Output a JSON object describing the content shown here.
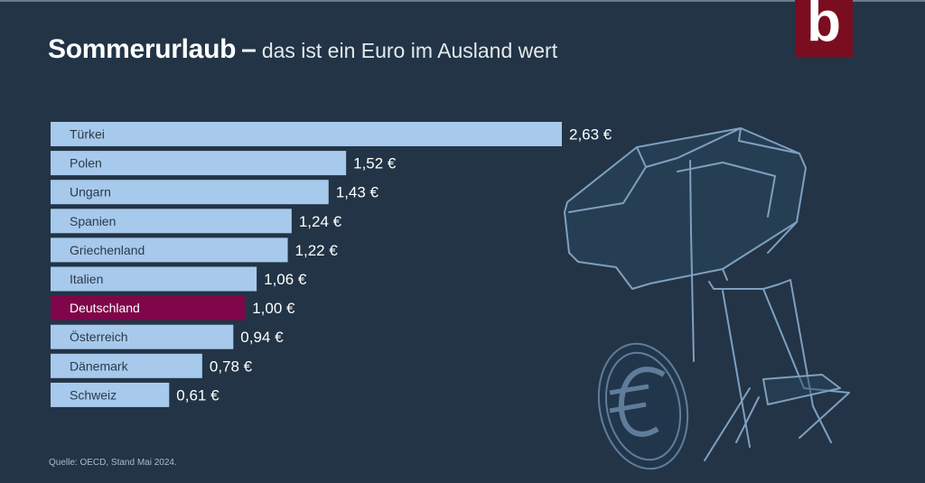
{
  "header": {
    "title_main": "Sommerurlaub",
    "title_dash": "–",
    "title_sub": "das ist ein Euro im Ausland wert"
  },
  "logo": {
    "letter": "b",
    "color": "#7a0d1f"
  },
  "footer": {
    "source": "Quelle: OECD, Stand Mai 2024."
  },
  "colors": {
    "background": "#223446",
    "bar": "#a7c9ec",
    "highlight": "#7f064a",
    "label_dark": "#2a3a4a",
    "value_text": "#ffffff"
  },
  "chart_data": {
    "type": "bar",
    "orientation": "horizontal",
    "title": "Sommerurlaub – das ist ein Euro im Ausland wert",
    "xlabel": "",
    "ylabel": "",
    "unit": "€",
    "categories": [
      "Türkei",
      "Polen",
      "Ungarn",
      "Spanien",
      "Griechenland",
      "Italien",
      "Deutschland",
      "Österreich",
      "Dänemark",
      "Schweiz"
    ],
    "values": [
      2.63,
      1.52,
      1.43,
      1.24,
      1.22,
      1.06,
      1.0,
      0.94,
      0.78,
      0.61
    ],
    "value_labels": [
      "2,63 €",
      "1,52 €",
      "1,43 €",
      "1,24 €",
      "1,22 €",
      "1,06 €",
      "1,00 €",
      "0,94 €",
      "0,78 €",
      "0,61 €"
    ],
    "highlight": "Deutschland",
    "xlim": [
      0,
      2.63
    ],
    "grid": false,
    "legend": "none"
  }
}
